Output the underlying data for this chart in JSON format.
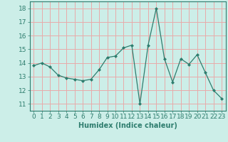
{
  "x": [
    0,
    1,
    2,
    3,
    4,
    5,
    6,
    7,
    8,
    9,
    10,
    11,
    12,
    13,
    14,
    15,
    16,
    17,
    18,
    19,
    20,
    21,
    22,
    23
  ],
  "y": [
    13.8,
    14.0,
    13.7,
    13.1,
    12.9,
    12.8,
    12.7,
    12.8,
    13.5,
    14.4,
    14.5,
    15.1,
    15.3,
    11.0,
    15.3,
    18.0,
    14.3,
    12.6,
    14.3,
    13.9,
    14.6,
    13.3,
    12.0,
    11.4
  ],
  "line_color": "#2e7d6e",
  "marker": "D",
  "marker_size": 2,
  "bg_color": "#cceee8",
  "grid_color": "#e8aaaa",
  "xlabel": "Humidex (Indice chaleur)",
  "ylim": [
    10.5,
    18.5
  ],
  "xlim": [
    -0.5,
    23.5
  ],
  "yticks": [
    11,
    12,
    13,
    14,
    15,
    16,
    17,
    18
  ],
  "xticks": [
    0,
    1,
    2,
    3,
    4,
    5,
    6,
    7,
    8,
    9,
    10,
    11,
    12,
    13,
    14,
    15,
    16,
    17,
    18,
    19,
    20,
    21,
    22,
    23
  ],
  "tick_color": "#2e7d6e",
  "label_color": "#2e7d6e",
  "label_fontsize": 7,
  "tick_fontsize": 6.5
}
